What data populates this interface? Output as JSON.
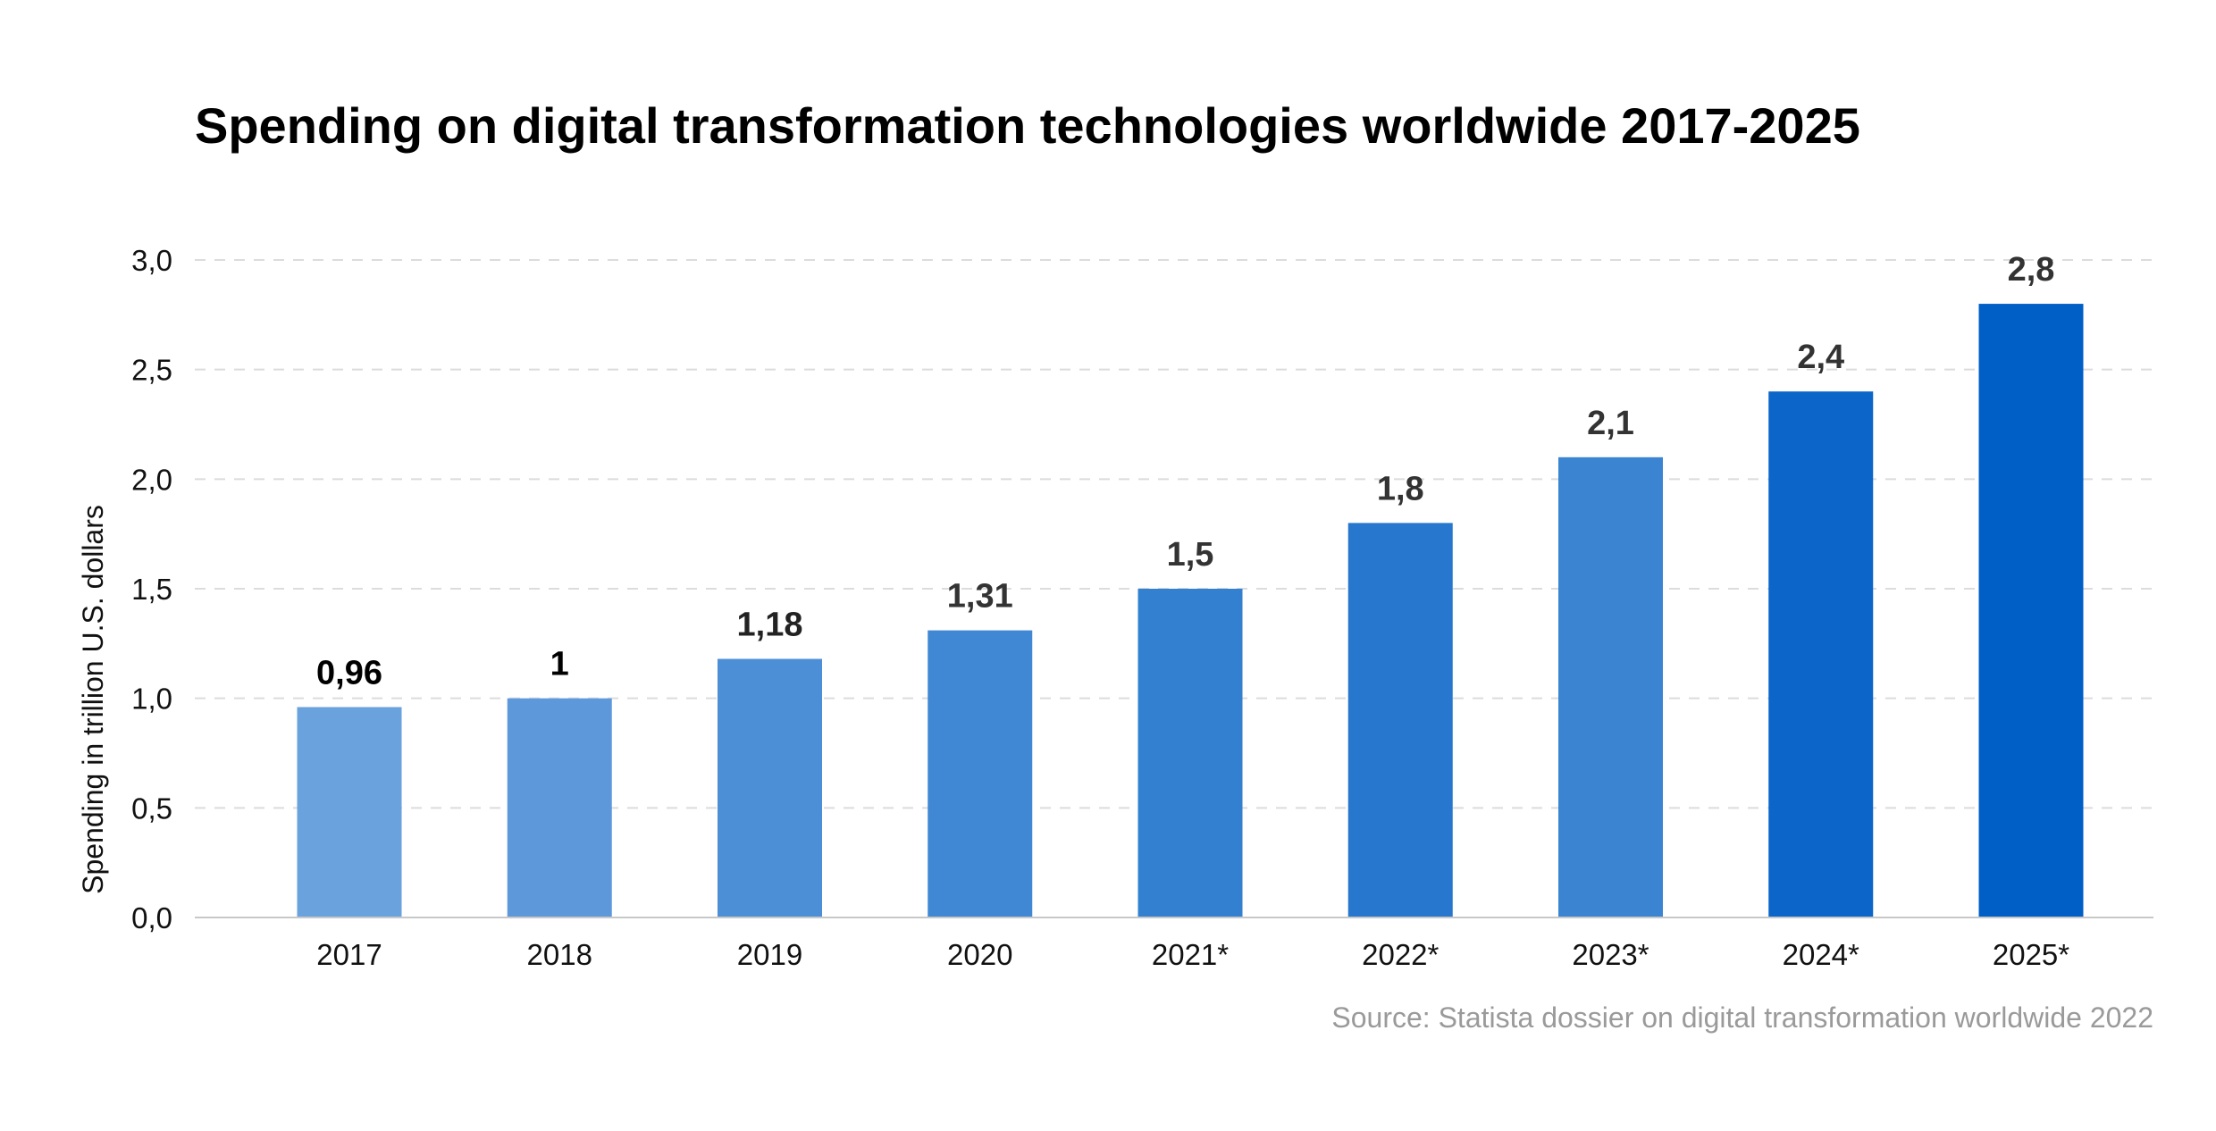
{
  "chart_data": {
    "type": "bar",
    "title": "Spending on digital transformation technologies worldwide 2017-2025",
    "ylabel": "Spending in trillion U.S. dollars",
    "xlabel": "",
    "categories": [
      "2017",
      "2018",
      "2019",
      "2020",
      "2021*",
      "2022*",
      "2023*",
      "2024*",
      "2025*"
    ],
    "values": [
      0.96,
      1,
      1.18,
      1.31,
      1.5,
      1.8,
      2.1,
      2.4,
      2.8
    ],
    "value_labels": [
      "0,96",
      "1",
      "1,18",
      "1,31",
      "1,5",
      "1,8",
      "2,1",
      "2,4",
      "2,8"
    ],
    "ylim": [
      0,
      3.0
    ],
    "yticks": [
      0,
      0.5,
      1.0,
      1.5,
      2.0,
      2.5,
      3.0
    ],
    "ytick_labels": [
      "0,0",
      "0,5",
      "1,0",
      "1,5",
      "2,0",
      "2,5",
      "3,0"
    ],
    "grid": true,
    "bar_colors": [
      "#6aa2de",
      "#5c98da",
      "#4d8fd6",
      "#4088d4",
      "#3380d1",
      "#2677cd",
      "#3a84d2",
      "#0c65c9",
      "#005fc6"
    ],
    "value_label_colors": [
      "#000000",
      "#000000",
      "#222222",
      "#333333",
      "#333333",
      "#333333",
      "#333333",
      "#333333",
      "#333333"
    ],
    "source": "Source: Statista dossier on digital transformation worldwide 2022"
  }
}
